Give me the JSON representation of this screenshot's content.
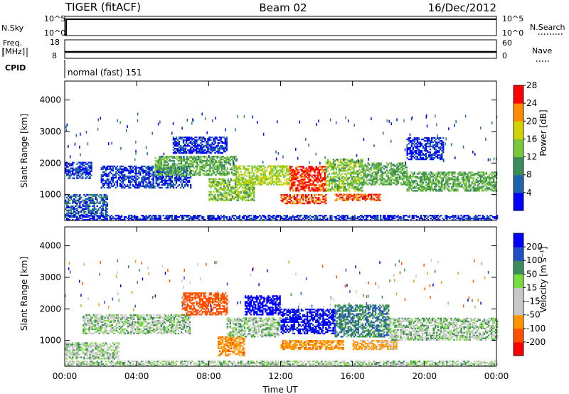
{
  "header": {
    "station": "TIGER (fitACF)",
    "beam": "Beam 02",
    "date": "16/Dec/2012"
  },
  "panels": {
    "nsky": {
      "label": "N.Sky",
      "left_ticks": [
        "10^5",
        "10^0"
      ],
      "right_label": "N.Search",
      "right_ticks": [
        "10^5",
        "10^0"
      ]
    },
    "freq": {
      "label_line1": "Freq.",
      "label_line2": "[MHz]",
      "left_ticks": [
        "18",
        "8"
      ],
      "right_label": "Nave",
      "right_ticks": [
        "60",
        "0"
      ]
    },
    "cpid": {
      "label": "CPID",
      "text": "normal (fast) 151"
    }
  },
  "chart_data": [
    {
      "type": "heatmap",
      "name": "power",
      "ylabel": "Slant Range [km]",
      "ylim": [
        180,
        4600
      ],
      "yticks": [
        1000,
        2000,
        3000,
        4000
      ],
      "xlim": [
        0,
        24
      ],
      "xticks": [
        "00:00",
        "04:00",
        "08:00",
        "12:00",
        "16:00",
        "20:00",
        "00:00"
      ],
      "colorbar": {
        "label": "Power [dB]",
        "ticks": [
          "4",
          "8",
          "12",
          "16",
          "20",
          "24",
          "28"
        ],
        "colors": [
          "#0000ff",
          "#1e64aa",
          "#3c8c5a",
          "#78c83c",
          "#d2d200",
          "#ff8c00",
          "#ff0000"
        ]
      },
      "regions": [
        {
          "t": [
            0.0,
            2.4
          ],
          "r": [
            300,
            1000
          ],
          "v": 8
        },
        {
          "t": [
            0.0,
            1.5
          ],
          "r": [
            1500,
            2000
          ],
          "v": 6
        },
        {
          "t": [
            2.0,
            7.0
          ],
          "r": [
            1200,
            1900
          ],
          "v": 6
        },
        {
          "t": [
            5.0,
            9.5
          ],
          "r": [
            1600,
            2200
          ],
          "v": 14
        },
        {
          "t": [
            6.0,
            9.0
          ],
          "r": [
            2300,
            2800
          ],
          "v": 5
        },
        {
          "t": [
            8.0,
            10.5
          ],
          "r": [
            800,
            1500
          ],
          "v": 16
        },
        {
          "t": [
            9.5,
            12.5
          ],
          "r": [
            1300,
            1900
          ],
          "v": 18
        },
        {
          "t": [
            12.5,
            14.5
          ],
          "r": [
            1100,
            1900
          ],
          "v": 28
        },
        {
          "t": [
            12.0,
            14.5
          ],
          "r": [
            700,
            1000
          ],
          "v": 26
        },
        {
          "t": [
            14.5,
            16.5
          ],
          "r": [
            1100,
            2100
          ],
          "v": 16
        },
        {
          "t": [
            15.0,
            17.5
          ],
          "r": [
            800,
            1000
          ],
          "v": 26
        },
        {
          "t": [
            16.5,
            19.0
          ],
          "r": [
            1300,
            2000
          ],
          "v": 14
        },
        {
          "t": [
            19.0,
            24.0
          ],
          "r": [
            1100,
            1700
          ],
          "v": 14
        },
        {
          "t": [
            19.0,
            21.0
          ],
          "r": [
            2100,
            2800
          ],
          "v": 5
        },
        {
          "t": [
            0.0,
            24.0
          ],
          "r": [
            180,
            320
          ],
          "v": 5
        }
      ]
    },
    {
      "type": "heatmap",
      "name": "velocity",
      "ylabel": "Slant Range [km]",
      "ylim": [
        180,
        4600
      ],
      "yticks": [
        1000,
        2000,
        3000,
        4000
      ],
      "xlim": [
        0,
        24
      ],
      "xticks": [
        "00:00",
        "04:00",
        "08:00",
        "12:00",
        "16:00",
        "20:00",
        "00:00"
      ],
      "xlabel": "Time UT",
      "colorbar": {
        "label": "Velocity [m s⁻¹]",
        "ticks": [
          "-200",
          "-100",
          "-50",
          "-15",
          "15",
          "50",
          "100",
          "200"
        ],
        "colors": [
          "#ff0000",
          "#ff5000",
          "#ff9600",
          "#c8c8c8",
          "#c8c8c8",
          "#78dc3c",
          "#3c8c5a",
          "#1e50c8",
          "#0000ff"
        ]
      },
      "regions": [
        {
          "t": [
            0.0,
            3.0
          ],
          "r": [
            400,
            900
          ],
          "v": 0
        },
        {
          "t": [
            1.0,
            7.0
          ],
          "r": [
            1200,
            1800
          ],
          "v": 0
        },
        {
          "t": [
            6.5,
            9.0
          ],
          "r": [
            1800,
            2500
          ],
          "v": -150
        },
        {
          "t": [
            8.5,
            10.0
          ],
          "r": [
            500,
            1100
          ],
          "v": -80
        },
        {
          "t": [
            9.0,
            12.0
          ],
          "r": [
            1100,
            1700
          ],
          "v": 0
        },
        {
          "t": [
            10.0,
            12.0
          ],
          "r": [
            1800,
            2400
          ],
          "v": 150
        },
        {
          "t": [
            12.0,
            15.0
          ],
          "r": [
            1200,
            2000
          ],
          "v": 120
        },
        {
          "t": [
            12.0,
            15.5
          ],
          "r": [
            700,
            1000
          ],
          "v": -80
        },
        {
          "t": [
            15.0,
            18.0
          ],
          "r": [
            1100,
            2100
          ],
          "v": 40
        },
        {
          "t": [
            16.0,
            18.5
          ],
          "r": [
            700,
            1000
          ],
          "v": -60
        },
        {
          "t": [
            18.0,
            24.0
          ],
          "r": [
            1000,
            1700
          ],
          "v": 0
        },
        {
          "t": [
            0.0,
            24.0
          ],
          "r": [
            180,
            320
          ],
          "v": 0
        }
      ]
    }
  ]
}
